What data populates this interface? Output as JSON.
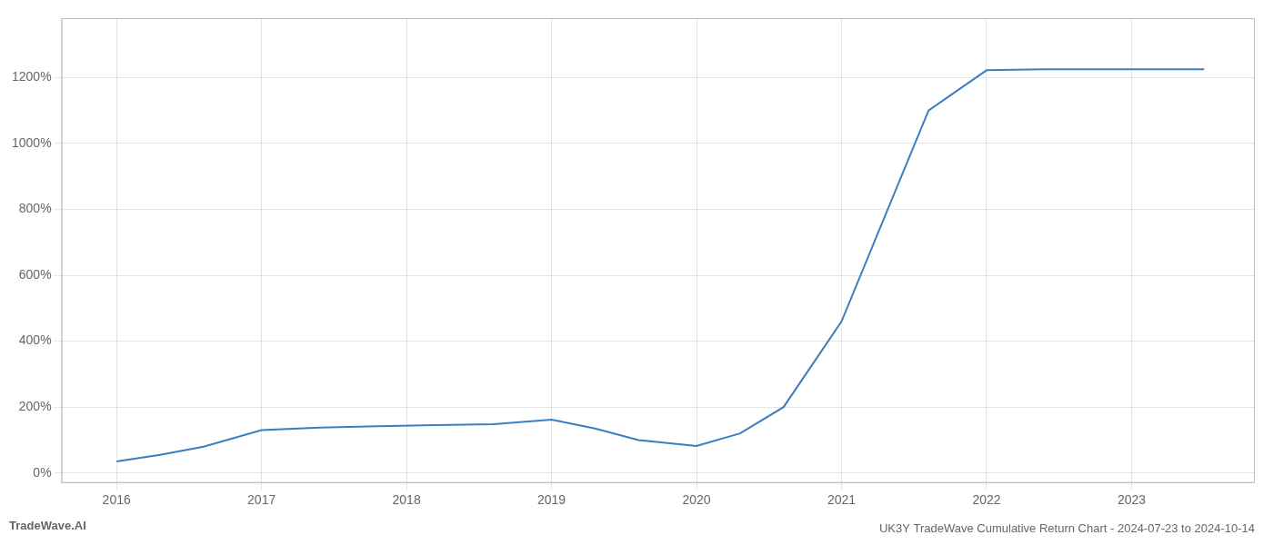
{
  "chart_data": {
    "type": "line",
    "title": "UK3Y TradeWave Cumulative Return Chart - 2024-07-23 to 2024-10-14",
    "annotations": [
      {
        "text": "TradeWave.AI"
      }
    ],
    "x": [
      2016.0,
      2016.3,
      2016.6,
      2017.0,
      2017.4,
      2017.8,
      2018.2,
      2018.6,
      2019.0,
      2019.3,
      2019.6,
      2020.0,
      2020.3,
      2020.6,
      2021.0,
      2021.3,
      2021.6,
      2022.0,
      2022.4,
      2022.8,
      2023.0,
      2023.5
    ],
    "values": [
      35,
      55,
      80,
      130,
      138,
      142,
      145,
      148,
      162,
      135,
      100,
      82,
      120,
      200,
      460,
      780,
      1100,
      1222,
      1225,
      1225,
      1225,
      1225
    ],
    "color": "#3a7ebf",
    "xlim": [
      2015.62,
      2023.85
    ],
    "ylim": [
      -30,
      1380
    ],
    "xticks": [
      2016,
      2017,
      2018,
      2019,
      2020,
      2021,
      2022,
      2023
    ],
    "yticks": [
      {
        "value": 0,
        "label": "0%"
      },
      {
        "value": 200,
        "label": "200%"
      },
      {
        "value": 400,
        "label": "400%"
      },
      {
        "value": 600,
        "label": "600%"
      },
      {
        "value": 800,
        "label": "800%"
      },
      {
        "value": 1000,
        "label": "1000%"
      },
      {
        "value": 1200,
        "label": "1200%"
      }
    ],
    "grid": true
  }
}
